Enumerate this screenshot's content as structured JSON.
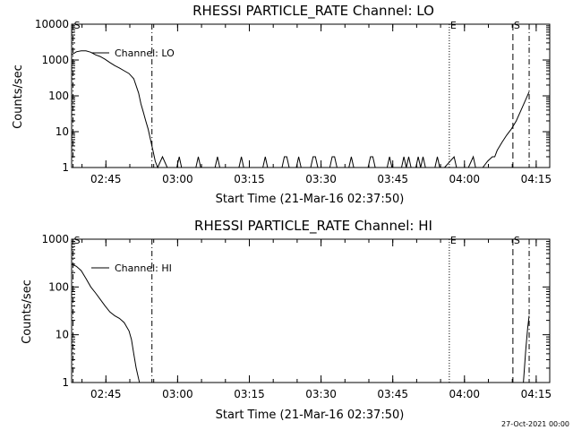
{
  "footer": {
    "date_stamp": "27-Oct-2021 00:00"
  },
  "colors": {
    "background": "#ffffff",
    "ink": "#000000"
  },
  "chart_data": [
    {
      "type": "line",
      "title": "RHESSI PARTICLE_RATE Channel: LO",
      "xlabel": "Start Time (21-Mar-16 02:37:50)",
      "ylabel": "Counts/sec",
      "y_scale": "log",
      "ylim": [
        1,
        10000
      ],
      "yticks": [
        {
          "value": 1,
          "label": "1"
        },
        {
          "value": 10,
          "label": "10"
        },
        {
          "value": 100,
          "label": "100"
        },
        {
          "value": 1000,
          "label": "1000"
        },
        {
          "value": 10000,
          "label": "10000"
        }
      ],
      "x_unit": "minutes after 02:37:50",
      "xlim": [
        0,
        100
      ],
      "xticks": [
        {
          "value": 7.17,
          "label": "02:45"
        },
        {
          "value": 22.17,
          "label": "03:00"
        },
        {
          "value": 37.17,
          "label": "03:15"
        },
        {
          "value": 52.17,
          "label": "03:30"
        },
        {
          "value": 67.17,
          "label": "03:45"
        },
        {
          "value": 82.17,
          "label": "04:00"
        },
        {
          "value": 97.17,
          "label": "04:15"
        }
      ],
      "grid": false,
      "legend": {
        "entries": [
          "Channel: LO"
        ],
        "position": "top-left"
      },
      "markers": [
        {
          "x": 0.3,
          "style": "dashdot",
          "label": "S"
        },
        {
          "x": 16.8,
          "style": "dashdot",
          "label": ""
        },
        {
          "x": 79.0,
          "style": "dotted",
          "label": "E"
        },
        {
          "x": 92.3,
          "style": "dashed",
          "label": "S"
        },
        {
          "x": 95.7,
          "style": "dashdot",
          "label": ""
        }
      ],
      "series": [
        {
          "name": "Channel: LO",
          "x": [
            0,
            1,
            2,
            3,
            4,
            5,
            6,
            7,
            8,
            9,
            10,
            11,
            12,
            13,
            14,
            14.5,
            15,
            15.5,
            16,
            16.5,
            17,
            17.5,
            18,
            19,
            20,
            21,
            22,
            22.5,
            23,
            23.5,
            24,
            26,
            26.5,
            27,
            27.5,
            28,
            30,
            30.5,
            31,
            31.5,
            32,
            33,
            34,
            35,
            35.5,
            36,
            36.5,
            37,
            38,
            39,
            40,
            40.5,
            41,
            41.5,
            42,
            43,
            44,
            44.5,
            45,
            45.5,
            46,
            47,
            47.5,
            48,
            48.5,
            49,
            50,
            50.5,
            51,
            51.5,
            52,
            53,
            54,
            54.5,
            55,
            55.5,
            56,
            57,
            58,
            58.5,
            59,
            59.5,
            60,
            61,
            62,
            62.5,
            63,
            63.5,
            64,
            65,
            66,
            66.5,
            67,
            67.5,
            68,
            69,
            69.5,
            70,
            70.5,
            71,
            72,
            72.5,
            73,
            73.5,
            74,
            75,
            76,
            76.5,
            77,
            77.5,
            78,
            80,
            80.5,
            81,
            81.5,
            82,
            83,
            84,
            84.5,
            85,
            85.5,
            86,
            87,
            88,
            88.5,
            89,
            90,
            91,
            92,
            93,
            94,
            95,
            95.7
          ],
          "values": [
            1400,
            1700,
            1800,
            1800,
            1650,
            1400,
            1250,
            1050,
            850,
            700,
            600,
            500,
            420,
            300,
            120,
            60,
            35,
            20,
            12,
            6,
            3,
            1.5,
            1,
            2,
            1,
            1,
            1,
            2,
            1,
            1,
            1,
            1,
            2,
            1,
            1,
            1,
            1,
            2,
            1,
            1,
            1,
            1,
            1,
            1,
            2,
            1,
            1,
            1,
            1,
            1,
            1,
            2,
            1,
            1,
            1,
            1,
            1,
            2,
            2,
            1,
            1,
            1,
            2,
            1,
            1,
            1,
            1,
            2,
            2,
            1,
            1,
            1,
            1,
            2,
            2,
            1,
            1,
            1,
            1,
            2,
            1,
            1,
            1,
            1,
            1,
            2,
            2,
            1,
            1,
            1,
            1,
            2,
            1,
            1,
            1,
            1,
            2,
            1,
            2,
            1,
            1,
            2,
            1,
            2,
            1,
            1,
            1,
            2,
            1,
            1,
            1,
            2,
            1,
            1,
            1,
            1,
            1,
            2,
            1,
            1,
            1,
            1,
            1.5,
            2,
            2,
            3,
            5,
            8,
            12,
            20,
            40,
            80,
            130
          ]
        }
      ]
    },
    {
      "type": "line",
      "title": "RHESSI PARTICLE_RATE Channel: HI",
      "xlabel": "Start Time (21-Mar-16 02:37:50)",
      "ylabel": "Counts/sec",
      "y_scale": "log",
      "ylim": [
        1,
        1000
      ],
      "yticks": [
        {
          "value": 1,
          "label": "1"
        },
        {
          "value": 10,
          "label": "10"
        },
        {
          "value": 100,
          "label": "100"
        },
        {
          "value": 1000,
          "label": "1000"
        }
      ],
      "x_unit": "minutes after 02:37:50",
      "xlim": [
        0,
        100
      ],
      "xticks": [
        {
          "value": 7.17,
          "label": "02:45"
        },
        {
          "value": 22.17,
          "label": "03:00"
        },
        {
          "value": 37.17,
          "label": "03:15"
        },
        {
          "value": 52.17,
          "label": "03:30"
        },
        {
          "value": 67.17,
          "label": "03:45"
        },
        {
          "value": 82.17,
          "label": "04:00"
        },
        {
          "value": 97.17,
          "label": "04:15"
        }
      ],
      "grid": false,
      "legend": {
        "entries": [
          "Channel: HI"
        ],
        "position": "top-left"
      },
      "markers": [
        {
          "x": 0.3,
          "style": "dashdot",
          "label": "S"
        },
        {
          "x": 16.8,
          "style": "dashdot",
          "label": ""
        },
        {
          "x": 79.0,
          "style": "dotted",
          "label": "E"
        },
        {
          "x": 92.3,
          "style": "dashed",
          "label": "S"
        },
        {
          "x": 95.7,
          "style": "dashdot",
          "label": ""
        }
      ],
      "series": [
        {
          "name": "Channel: HI",
          "x": [
            0,
            1,
            2,
            3,
            4,
            5,
            6,
            7,
            8,
            9,
            10,
            11,
            12,
            12.5,
            13,
            13.5,
            14,
            14.2
          ],
          "values": [
            300,
            270,
            220,
            150,
            100,
            75,
            55,
            40,
            30,
            25,
            22,
            18,
            12,
            8,
            4,
            2,
            1.2,
            1
          ]
        },
        {
          "name": "",
          "x": [
            94.5,
            95,
            95.4,
            95.7
          ],
          "values": [
            1,
            5,
            14,
            25
          ]
        }
      ]
    }
  ]
}
